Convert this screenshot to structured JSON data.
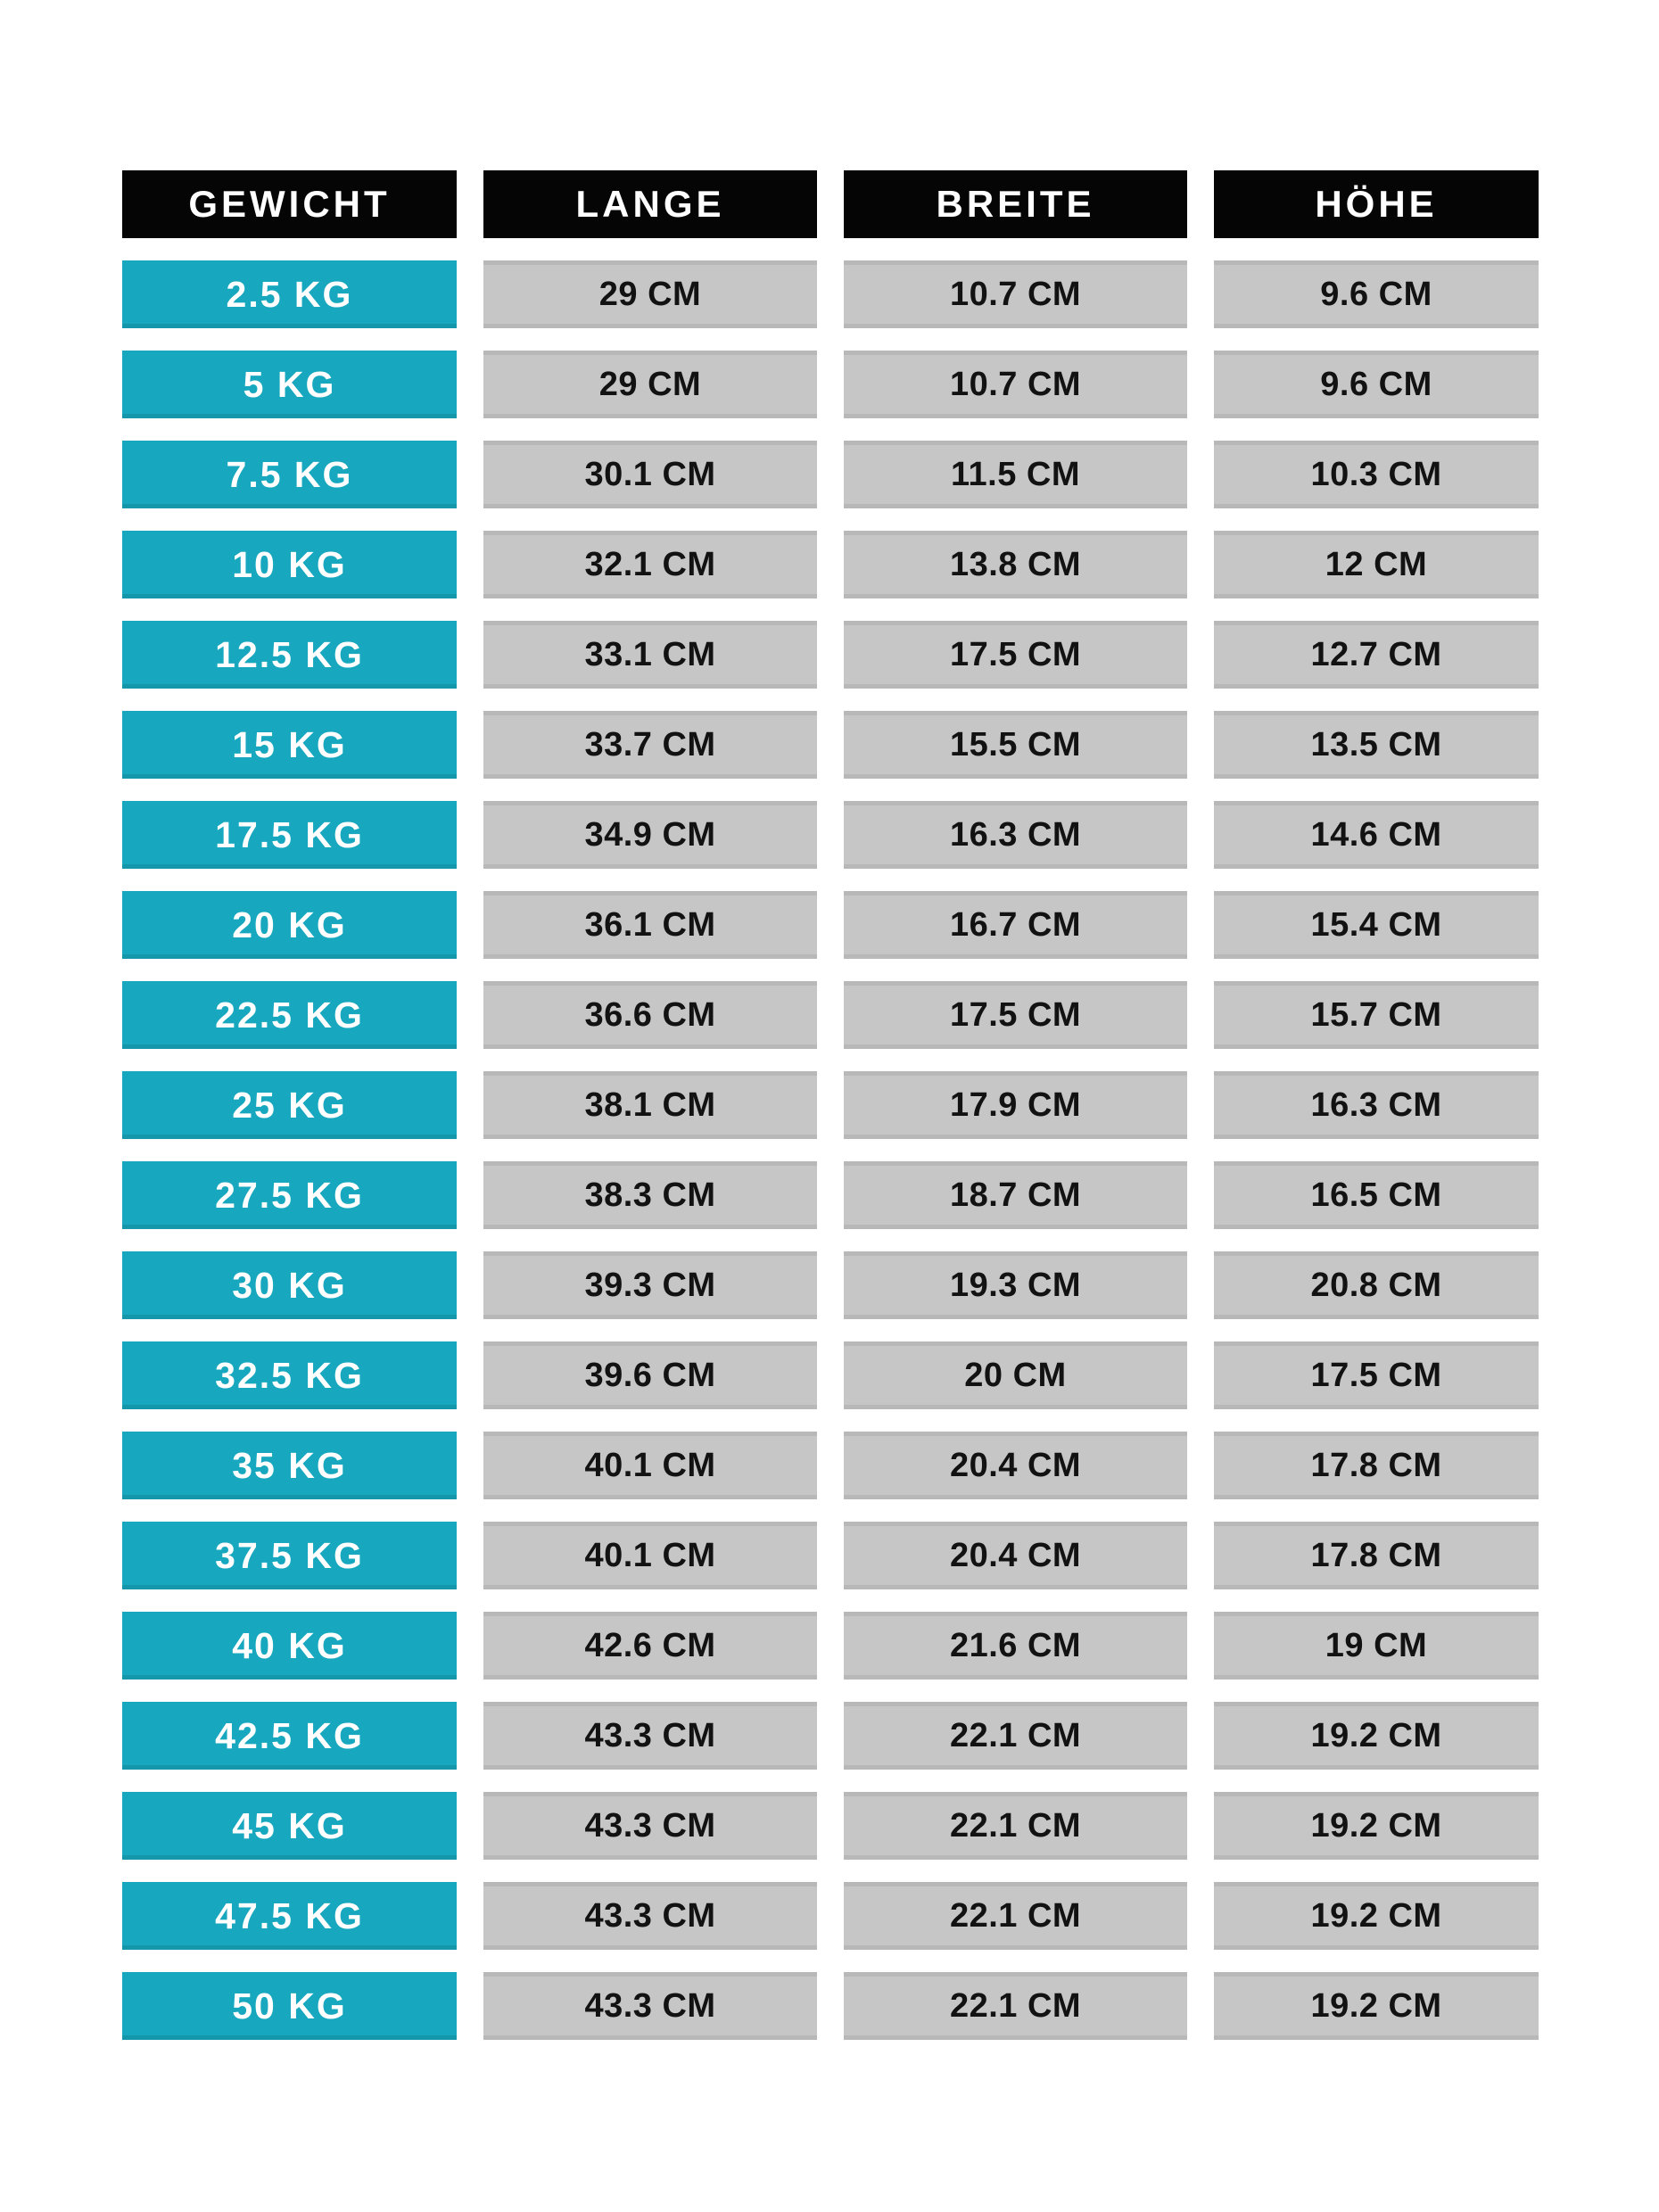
{
  "theme": {
    "page_background": "#ffffff",
    "header_bg": "#050505",
    "header_text": "#ffffff",
    "weight_col_bg": "#17a8bf",
    "weight_col_text": "#ffffff",
    "value_cell_bg": "#c6c6c6",
    "value_cell_text": "#121212"
  },
  "chart_data": {
    "type": "table",
    "title": "",
    "columns": [
      "GEWICHT",
      "LANGE",
      "BREITE",
      "HÖHE"
    ],
    "rows": [
      [
        "2.5 KG",
        "29 CM",
        "10.7 CM",
        "9.6 CM"
      ],
      [
        "5 KG",
        "29 CM",
        "10.7 CM",
        "9.6 CM"
      ],
      [
        "7.5 KG",
        "30.1 CM",
        "11.5 CM",
        "10.3 CM"
      ],
      [
        "10 KG",
        "32.1 CM",
        "13.8 CM",
        "12 CM"
      ],
      [
        "12.5 KG",
        "33.1 CM",
        "17.5 CM",
        "12.7 CM"
      ],
      [
        "15 KG",
        "33.7 CM",
        "15.5 CM",
        "13.5 CM"
      ],
      [
        "17.5 KG",
        "34.9 CM",
        "16.3 CM",
        "14.6 CM"
      ],
      [
        "20 KG",
        "36.1 CM",
        "16.7 CM",
        "15.4 CM"
      ],
      [
        "22.5 KG",
        "36.6 CM",
        "17.5 CM",
        "15.7 CM"
      ],
      [
        "25 KG",
        "38.1 CM",
        "17.9 CM",
        "16.3 CM"
      ],
      [
        "27.5 KG",
        "38.3 CM",
        "18.7 CM",
        "16.5 CM"
      ],
      [
        "30 KG",
        "39.3 CM",
        "19.3 CM",
        "20.8 CM"
      ],
      [
        "32.5 KG",
        "39.6 CM",
        "20 CM",
        "17.5 CM"
      ],
      [
        "35 KG",
        "40.1 CM",
        "20.4 CM",
        "17.8 CM"
      ],
      [
        "37.5 KG",
        "40.1 CM",
        "20.4 CM",
        "17.8 CM"
      ],
      [
        "40 KG",
        "42.6 CM",
        "21.6 CM",
        "19 CM"
      ],
      [
        "42.5 KG",
        "43.3 CM",
        "22.1 CM",
        "19.2 CM"
      ],
      [
        "45 KG",
        "43.3 CM",
        "22.1 CM",
        "19.2 CM"
      ],
      [
        "47.5 KG",
        "43.3 CM",
        "22.1 CM",
        "19.2 CM"
      ],
      [
        "50 KG",
        "43.3 CM",
        "22.1 CM",
        "19.2 CM"
      ]
    ]
  }
}
